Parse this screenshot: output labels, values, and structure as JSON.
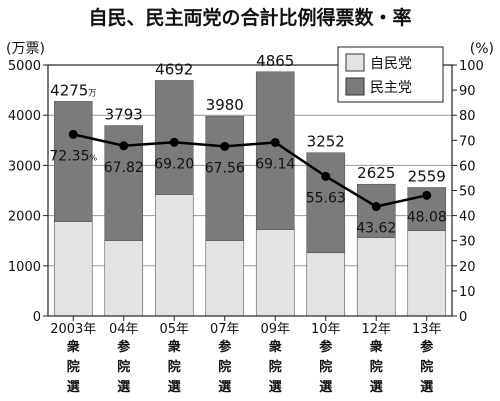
{
  "chart_data": {
    "type": "bar",
    "title": "自民、民主両党の合計比例得票数・率",
    "ylabel": "(万票)",
    "y2label": "(%)",
    "ylim": [
      0,
      5000
    ],
    "y2lim": [
      0,
      100
    ],
    "yticks": [
      "0",
      "1000",
      "2000",
      "3000",
      "4000",
      "5000"
    ],
    "y2ticks": [
      "0",
      "10",
      "20",
      "30",
      "40",
      "50",
      "60",
      "70",
      "80",
      "90",
      "100"
    ],
    "stacked": true,
    "grid": "horizontal",
    "legend": "top-right",
    "categories": [
      "2003年",
      "04年",
      "05年",
      "07年",
      "09年",
      "10年",
      "12年",
      "13年"
    ],
    "election_types": [
      [
        "衆",
        "院",
        "選"
      ],
      [
        "参",
        "院",
        "選"
      ],
      [
        "衆",
        "院",
        "選"
      ],
      [
        "参",
        "院",
        "選"
      ],
      [
        "衆",
        "院",
        "選"
      ],
      [
        "参",
        "院",
        "選"
      ],
      [
        "衆",
        "院",
        "選"
      ],
      [
        "参",
        "院",
        "選"
      ]
    ],
    "totals": [
      4275,
      3793,
      4692,
      3980,
      4865,
      3252,
      2625,
      2559
    ],
    "total_labels": [
      "4275",
      "3793",
      "4692",
      "3980",
      "4865",
      "3252",
      "2625",
      "2559"
    ],
    "total_first_suffix": "万",
    "series": [
      {
        "name": "自民党",
        "color": "#e3e3e3",
        "values": [
          1880,
          1500,
          2420,
          1500,
          1720,
          1260,
          1560,
          1700
        ]
      },
      {
        "name": "民主党",
        "color": "#7b7b7b",
        "values": [
          2395,
          2293,
          2272,
          2480,
          3145,
          1992,
          1065,
          859
        ]
      }
    ],
    "line": {
      "color": "#000000",
      "values": [
        72.35,
        67.82,
        69.2,
        67.56,
        69.14,
        55.63,
        43.62,
        48.08
      ],
      "labels": [
        "72.35",
        "67.82",
        "69.20",
        "67.56",
        "69.14",
        "55.63",
        "43.62",
        "48.08"
      ],
      "first_suffix": "%"
    }
  }
}
